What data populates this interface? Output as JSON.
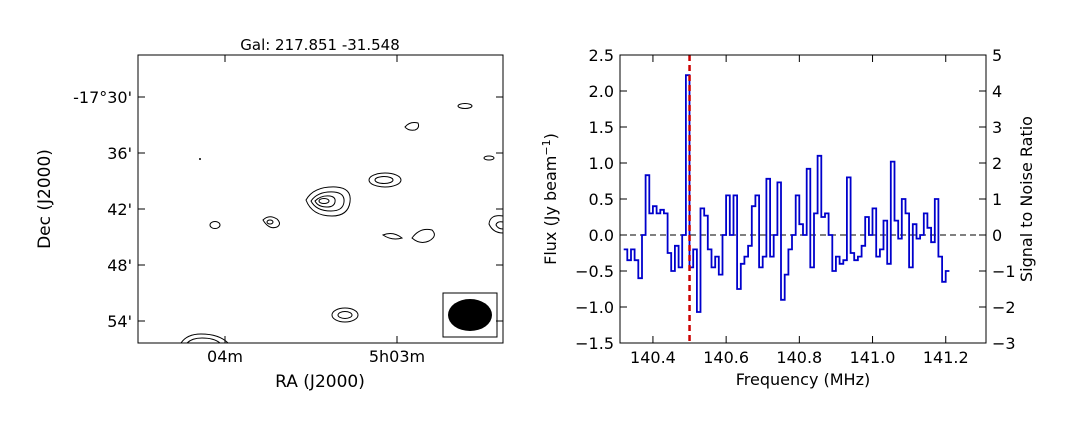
{
  "chart_data": [
    {
      "type": "contour",
      "title": "Gal: 217.851 -31.548",
      "xlabel": "RA (J2000)",
      "ylabel": "Dec (J2000)",
      "x_ticks": [
        "04m",
        "5h03m"
      ],
      "y_ticks": [
        "-17°30'",
        "36'",
        "42'",
        "48'",
        "54'"
      ],
      "beam": "filled ellipse, bottom-right"
    },
    {
      "type": "line",
      "step": true,
      "xlabel": "Frequency (MHz)",
      "ylabel": "Flux (Jy beam",
      "ylabel_sup": "−1",
      "ylabel_close": ")",
      "y2label": "Signal to Noise Ratio",
      "xlim": [
        140.31,
        141.31
      ],
      "ylim": [
        -1.5,
        2.5
      ],
      "y2lim": [
        -3,
        5
      ],
      "x_ticks": [
        "140.4",
        "140.6",
        "140.8",
        "141.0",
        "141.2"
      ],
      "y_ticks": [
        "−1.5",
        "−1.0",
        "−0.5",
        "0.0",
        "0.5",
        "1.0",
        "1.5",
        "2.0",
        "2.5"
      ],
      "y2_ticks": [
        "−3",
        "−2",
        "−1",
        "0",
        "1",
        "2",
        "3",
        "4",
        "5"
      ],
      "marker_x": 140.5,
      "colors": {
        "spectrum": "#0000cc",
        "marker": "#cc0000"
      },
      "series": [
        {
          "x_start": 140.32,
          "x_step": 0.01,
          "values": [
            -0.2,
            -0.35,
            -0.2,
            -0.35,
            -0.6,
            0.0,
            0.83,
            0.3,
            0.4,
            0.3,
            0.35,
            0.3,
            -0.25,
            -0.5,
            -0.15,
            -0.45,
            0.0,
            2.22,
            -0.45,
            -0.2,
            -1.07,
            0.37,
            0.27,
            -0.2,
            -0.45,
            -0.3,
            -0.55,
            0.0,
            0.55,
            0.0,
            0.55,
            -0.75,
            -0.4,
            -0.3,
            -0.15,
            0.4,
            0.55,
            -0.45,
            -0.3,
            0.78,
            -0.3,
            0.0,
            0.73,
            -0.9,
            -0.55,
            -0.2,
            0.0,
            0.55,
            0.15,
            0.0,
            0.92,
            -0.45,
            0.3,
            1.1,
            0.25,
            0.3,
            0.0,
            -0.5,
            -0.3,
            -0.4,
            -0.35,
            0.8,
            -0.25,
            -0.35,
            -0.3,
            -0.15,
            0.25,
            0.0,
            0.37,
            -0.3,
            -0.2,
            0.2,
            -0.4,
            1.02,
            0.2,
            -0.05,
            0.5,
            0.3,
            -0.45,
            0.15,
            -0.05,
            0.0,
            0.3,
            0.1,
            -0.1,
            0.5,
            -0.3,
            -0.65,
            -0.5
          ]
        }
      ]
    }
  ]
}
